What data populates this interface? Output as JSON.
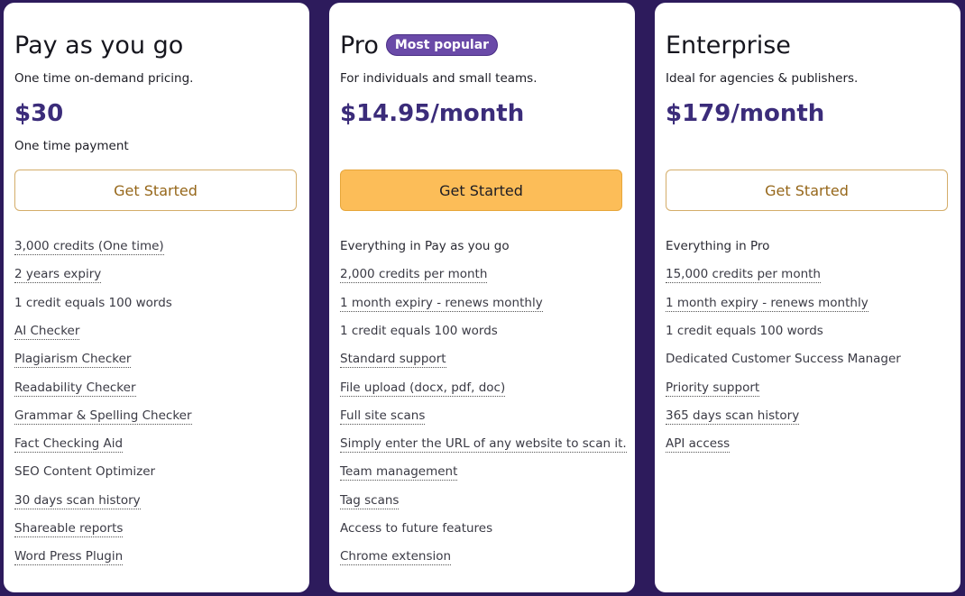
{
  "plans": [
    {
      "name": "Pay as you go",
      "description": "One time on-demand pricing.",
      "price": "$30",
      "price_note": "One time payment",
      "button": "Get Started",
      "highlighted": false,
      "features": [
        {
          "text": "3,000 credits (One time)",
          "underlined": true
        },
        {
          "text": "2 years expiry",
          "underlined": true
        },
        {
          "text": "1 credit equals 100 words",
          "underlined": false
        },
        {
          "text": "AI Checker",
          "underlined": true
        },
        {
          "text": "Plagiarism Checker",
          "underlined": true
        },
        {
          "text": "Readability Checker",
          "underlined": true
        },
        {
          "text": "Grammar & Spelling Checker",
          "underlined": true
        },
        {
          "text": "Fact Checking Aid",
          "underlined": true
        },
        {
          "text": "SEO Content Optimizer",
          "underlined": false
        },
        {
          "text": "30 days scan history",
          "underlined": true
        },
        {
          "text": "Shareable reports",
          "underlined": true
        },
        {
          "text": "Word Press Plugin",
          "underlined": true
        }
      ]
    },
    {
      "name": "Pro",
      "badge": "Most popular",
      "description": "For individuals and small teams.",
      "price": "$14.95/month",
      "button": "Get Started",
      "highlighted": true,
      "includes": "Everything in Pay as you go",
      "features": [
        {
          "text": "2,000 credits per month",
          "underlined": true
        },
        {
          "text": "1 month expiry - renews monthly",
          "underlined": true
        },
        {
          "text": "1 credit equals 100 words",
          "underlined": false
        },
        {
          "text": "Standard support",
          "underlined": true
        },
        {
          "text": "File upload (docx, pdf, doc)",
          "underlined": true
        },
        {
          "text": "Full site scans",
          "underlined": true
        },
        {
          "text": "Simply enter the URL of any website to scan it.",
          "underlined": true
        },
        {
          "text": "Team management",
          "underlined": true
        },
        {
          "text": "Tag scans",
          "underlined": true
        },
        {
          "text": "Access to future features",
          "underlined": false
        },
        {
          "text": "Chrome extension",
          "underlined": true
        }
      ]
    },
    {
      "name": "Enterprise",
      "description": "Ideal for agencies & publishers.",
      "price": "$179/month",
      "button": "Get Started",
      "highlighted": false,
      "includes": "Everything in Pro",
      "features": [
        {
          "text": "15,000 credits per month",
          "underlined": true
        },
        {
          "text": "1 month expiry - renews monthly",
          "underlined": true
        },
        {
          "text": "1 credit equals 100 words",
          "underlined": false
        },
        {
          "text": "Dedicated Customer Success Manager",
          "underlined": false
        },
        {
          "text": "Priority support",
          "underlined": true
        },
        {
          "text": "365 days scan history",
          "underlined": true
        },
        {
          "text": "API access",
          "underlined": true
        }
      ]
    }
  ]
}
